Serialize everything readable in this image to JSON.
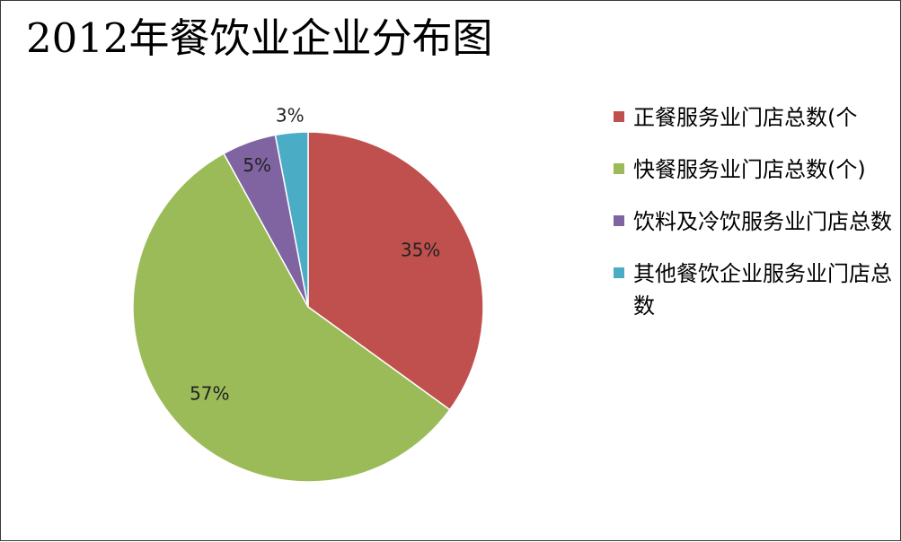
{
  "title": "2012年餐饮业企业分布图",
  "chart_data": {
    "type": "pie",
    "title": "2012年餐饮业企业分布图",
    "slices": [
      {
        "label": "正餐服务业门店总数(个",
        "value": 35,
        "display": "35%",
        "color": "#C0504D"
      },
      {
        "label": "快餐服务业门店总数(个)",
        "value": 57,
        "display": "57%",
        "color": "#9BBB59"
      },
      {
        "label": "饮料及冷饮服务业门店总数",
        "value": 5,
        "display": "5%",
        "color": "#8064A2"
      },
      {
        "label": "其他餐饮企业服务业门店总数",
        "value": 3,
        "display": "3%",
        "color": "#4BACC6"
      }
    ],
    "legend_position": "right"
  },
  "legend": [
    {
      "text": "正餐服务业门店总数(个",
      "color": "#C0504D"
    },
    {
      "text": "快餐服务业门店总数(个)",
      "color": "#9BBB59"
    },
    {
      "text": "饮料及冷饮服务业门店总数",
      "color": "#8064A2"
    },
    {
      "text": "其他餐饮企业服务业门店总数",
      "color": "#4BACC6"
    }
  ]
}
